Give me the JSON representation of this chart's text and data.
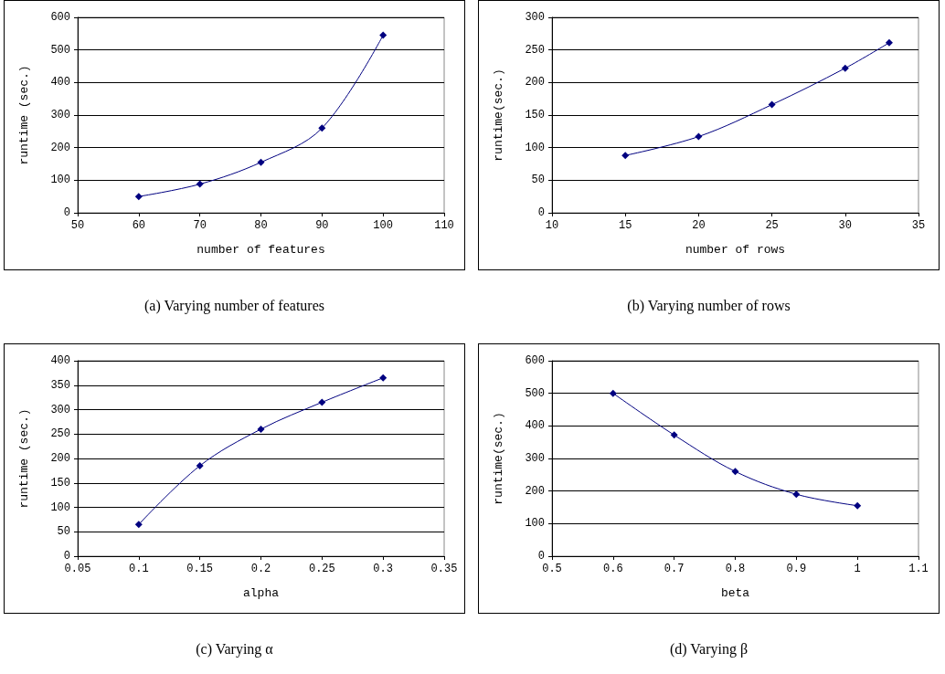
{
  "chart_data": [
    {
      "type": "line",
      "xlabel": "number of features",
      "ylabel": "runtime (sec.)",
      "annotations": [
        "(a) Varying number of features"
      ],
      "x": [
        60,
        70,
        80,
        90,
        100
      ],
      "series": [
        {
          "color": "#000080",
          "values": [
            50,
            88,
            155,
            260,
            545
          ]
        }
      ],
      "xlim": [
        50,
        110
      ],
      "xticks": [
        50,
        60,
        70,
        80,
        90,
        100,
        110
      ],
      "ylim": [
        0,
        600
      ],
      "yticks": [
        0,
        100,
        200,
        300,
        400,
        500,
        600
      ],
      "grid": "y",
      "marker": "diamond",
      "line_style": "solid"
    },
    {
      "type": "line",
      "xlabel": "number of rows",
      "ylabel": "runtime(sec.)",
      "annotations": [
        "(b) Varying number of rows"
      ],
      "x": [
        15,
        20,
        25,
        30,
        33
      ],
      "series": [
        {
          "color": "#000080",
          "values": [
            88,
            117,
            166,
            222,
            261
          ]
        }
      ],
      "xlim": [
        10,
        35
      ],
      "xticks": [
        10,
        15,
        20,
        25,
        30,
        35
      ],
      "ylim": [
        0,
        300
      ],
      "yticks": [
        0,
        50,
        100,
        150,
        200,
        250,
        300
      ],
      "grid": "y",
      "marker": "diamond",
      "line_style": "solid"
    },
    {
      "type": "line",
      "xlabel": "alpha",
      "ylabel": "runtime (sec.)",
      "annotations": [
        "(c) Varying α"
      ],
      "x": [
        0.1,
        0.15,
        0.2,
        0.25,
        0.3
      ],
      "series": [
        {
          "color": "#000080",
          "values": [
            65,
            185,
            260,
            315,
            365
          ]
        }
      ],
      "xlim": [
        0.05,
        0.35
      ],
      "xticks": [
        0.05,
        0.1,
        0.15,
        0.2,
        0.25,
        0.3,
        0.35
      ],
      "ylim": [
        0,
        400
      ],
      "yticks": [
        0,
        50,
        100,
        150,
        200,
        250,
        300,
        350,
        400
      ],
      "grid": "y",
      "marker": "diamond",
      "line_style": "solid"
    },
    {
      "type": "line",
      "xlabel": "beta",
      "ylabel": "runtime(sec.)",
      "annotations": [
        "(d) Varying β"
      ],
      "x": [
        0.6,
        0.7,
        0.8,
        0.9,
        1
      ],
      "series": [
        {
          "color": "#000080",
          "values": [
            500,
            372,
            260,
            190,
            155
          ]
        }
      ],
      "xlim": [
        0.5,
        1.1
      ],
      "xticks": [
        0.5,
        0.6,
        0.7,
        0.8,
        0.9,
        1,
        1.1
      ],
      "ylim": [
        0,
        600
      ],
      "yticks": [
        0,
        100,
        200,
        300,
        400,
        500,
        600
      ],
      "grid": "y",
      "marker": "diamond",
      "line_style": "solid"
    }
  ]
}
